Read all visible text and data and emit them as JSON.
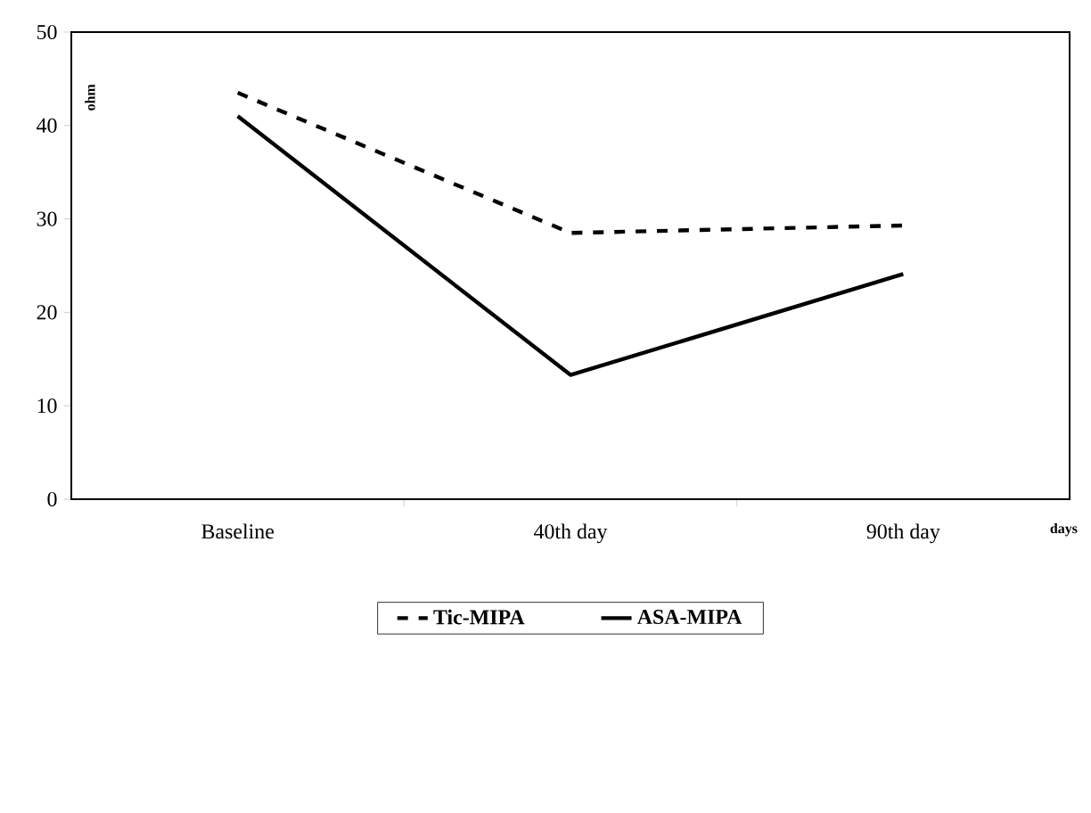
{
  "chart_data": {
    "type": "line",
    "xlabel": "days",
    "ylabel": "ohm",
    "categories": [
      "Baseline",
      "40th day",
      "90th day"
    ],
    "series": [
      {
        "name": "Tic-MIPA",
        "color": "#000000",
        "line_style": "dashed",
        "values": [
          43.5,
          28.5,
          29.3
        ]
      },
      {
        "name": "ASA-MIPA",
        "color": "#000000",
        "line_style": "solid",
        "values": [
          41.0,
          13.3,
          24.1
        ]
      }
    ],
    "ylim": [
      0,
      50
    ],
    "yticks": [
      0,
      10,
      20,
      30,
      40,
      50
    ],
    "grid": false,
    "legend": "bottom",
    "marker": "none"
  }
}
